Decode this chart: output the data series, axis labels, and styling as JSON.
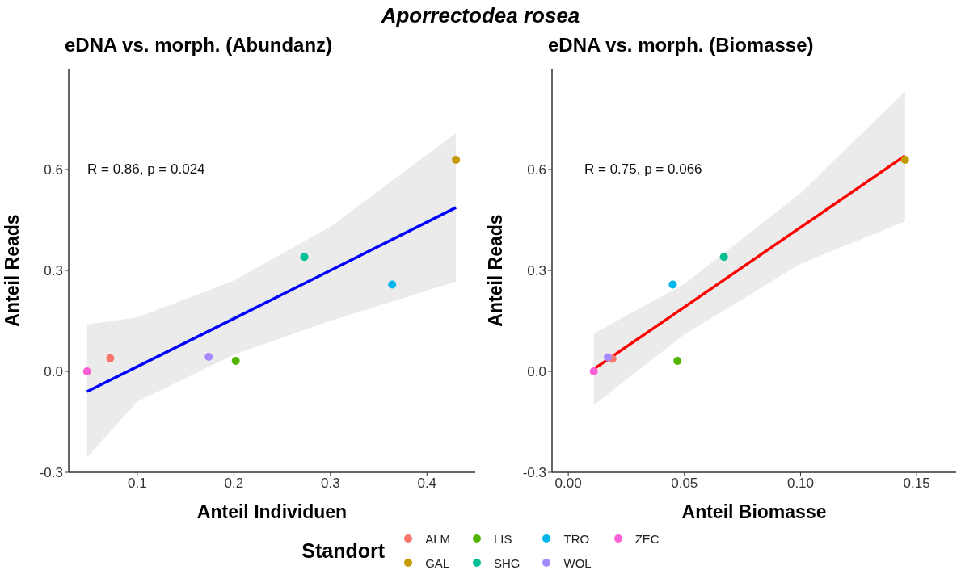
{
  "chart_data": [
    {
      "type": "scatter",
      "title": "Aporrectodea rosea",
      "subtitle": "eDNA vs. morph. (Abundanz)",
      "xlabel": "Anteil Individuen",
      "ylabel": "Anteil Reads",
      "legend_title": "Standort",
      "legend": "bottom",
      "annotations": [
        "R = 0.86, p = 0.024"
      ],
      "xlim": [
        0.029,
        0.45
      ],
      "xticks": [
        0.1,
        0.2,
        0.3,
        0.4
      ],
      "ylim": [
        -0.3,
        0.9
      ],
      "yticks": [
        {
          "value": -0.3,
          "label": "-0.3"
        },
        {
          "value": 0,
          "label": "0.0"
        },
        {
          "value": 0.3,
          "label": "0.3"
        },
        {
          "value": 0.6,
          "label": "0.6"
        }
      ],
      "series": [
        {
          "name": "ALM",
          "color": "#f8766d",
          "marker": "circle",
          "x": [
            0.072
          ],
          "values": [
            0.039
          ]
        },
        {
          "name": "GAL",
          "color": "#c49a00",
          "marker": "circle",
          "x": [
            0.43
          ],
          "values": [
            0.629
          ]
        },
        {
          "name": "LIS",
          "color": "#53b400",
          "marker": "circle",
          "x": [
            0.202
          ],
          "values": [
            0.031
          ]
        },
        {
          "name": "SHG",
          "color": "#00c094",
          "marker": "circle",
          "x": [
            0.273
          ],
          "values": [
            0.34
          ]
        },
        {
          "name": "TRO",
          "color": "#00b6eb",
          "marker": "circle",
          "x": [
            0.364
          ],
          "values": [
            0.258
          ]
        },
        {
          "name": "WOL",
          "color": "#a58aff",
          "marker": "circle",
          "x": [
            0.174
          ],
          "values": [
            0.043
          ]
        },
        {
          "name": "ZEC",
          "color": "#fb61d7",
          "marker": "circle",
          "x": [
            0.048
          ],
          "values": [
            0.0
          ]
        },
        {
          "type": "line",
          "color": "#0000ff",
          "marker": "none",
          "x": [
            0.048,
            0.1,
            0.2,
            0.3,
            0.43
          ],
          "values": [
            -0.06,
            0.014,
            0.157,
            0.3,
            0.487
          ],
          "lower": [
            -0.255,
            -0.09,
            0.05,
            0.15,
            0.267
          ],
          "upper": [
            0.14,
            0.16,
            0.27,
            0.43,
            0.708
          ]
        }
      ]
    },
    {
      "type": "scatter",
      "subtitle": "eDNA vs. morph. (Biomasse)",
      "xlabel": "Anteil Biomasse",
      "ylabel": "Anteil Reads",
      "annotations": [
        "R = 0.75, p = 0.066"
      ],
      "xlim": [
        -0.007,
        0.167
      ],
      "xticks": [
        {
          "value": 0,
          "label": "0.00"
        },
        {
          "value": 0.05,
          "label": "0.05"
        },
        {
          "value": 0.1,
          "label": "0.10"
        },
        {
          "value": 0.15,
          "label": "0.15"
        }
      ],
      "ylim": [
        -0.3,
        0.9
      ],
      "yticks": [
        {
          "value": -0.3,
          "label": "-0.3"
        },
        {
          "value": 0,
          "label": "0.0"
        },
        {
          "value": 0.3,
          "label": "0.3"
        },
        {
          "value": 0.6,
          "label": "0.6"
        }
      ],
      "series": [
        {
          "color": "#f8766d",
          "marker": "circle",
          "x": [
            0.019
          ],
          "values": [
            0.037
          ]
        },
        {
          "color": "#c49a00",
          "marker": "circle",
          "x": [
            0.145
          ],
          "values": [
            0.629
          ]
        },
        {
          "color": "#53b400",
          "marker": "circle",
          "x": [
            0.047
          ],
          "values": [
            0.031
          ]
        },
        {
          "color": "#00c094",
          "marker": "circle",
          "x": [
            0.067
          ],
          "values": [
            0.34
          ]
        },
        {
          "color": "#00b6eb",
          "marker": "circle",
          "x": [
            0.045
          ],
          "values": [
            0.258
          ]
        },
        {
          "color": "#a58aff",
          "marker": "circle",
          "x": [
            0.017
          ],
          "values": [
            0.042
          ]
        },
        {
          "color": "#fb61d7",
          "marker": "circle",
          "x": [
            0.011
          ],
          "values": [
            0.0
          ]
        },
        {
          "type": "line",
          "color": "#ff0000",
          "marker": "none",
          "x": [
            0.011,
            0.05,
            0.1,
            0.145
          ],
          "values": [
            0.007,
            0.191,
            0.428,
            0.641
          ],
          "lower": [
            -0.1,
            0.11,
            0.32,
            0.446
          ],
          "upper": [
            0.113,
            0.26,
            0.53,
            0.832
          ]
        }
      ]
    }
  ]
}
